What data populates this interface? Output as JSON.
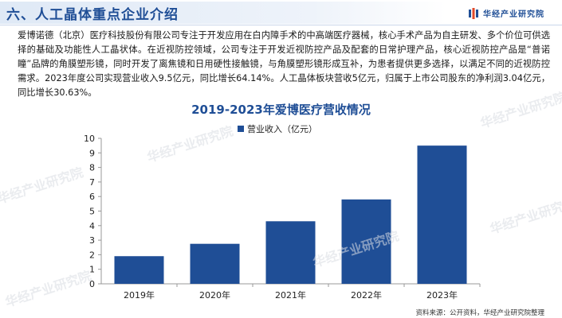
{
  "header": {
    "title": "六、人工晶体重点企业介绍",
    "brand_name": "华经产业研究院",
    "brand_logo_icon": "brand-logo-icon"
  },
  "paragraph": "爱博诺德（北京）医疗科技股份有限公司专注于开发应用在白内障手术的中高端医疗器械，核心手术产品为自主研发、多个价位可供选择的基础及功能性人工晶状体。在近视防控领域，公司专注于开发近视防控产品及配套的日常护理产品，核心近视防控产品是“普诺瞳”品牌的角膜塑形镜，同时开发了离焦镜和日用硬性接触镜，与角膜塑形镜形成互补，为患者提供更多选择，以满足不同的近视防控需求。2023年度公司实现营业收入9.5亿元，同比增长64.14%。人工晶体板块营收5亿元，归属于上市公司股东的净利润3.04亿元，同比增长30.63%。",
  "watermark_text": "华经产业研究院",
  "source": "资料来源：公开资料，华经产业研究院整理",
  "colors": {
    "bar": "#1f4e96",
    "title": "#1f4e96",
    "axis": "#999999"
  },
  "chart_data": {
    "type": "bar",
    "title": "2019-2023年爱博医疗营收情况",
    "categories": [
      "2019年",
      "2020年",
      "2021年",
      "2022年",
      "2023年"
    ],
    "series": [
      {
        "name": "营业收入（亿元）",
        "values": [
          1.9,
          2.75,
          4.3,
          5.8,
          9.5
        ]
      }
    ],
    "ylim": [
      0,
      10
    ],
    "yticks": [
      "0",
      "1",
      "2",
      "3",
      "4",
      "5",
      "6",
      "7",
      "8",
      "9",
      "10"
    ],
    "grid": false,
    "legend": "top-center"
  }
}
